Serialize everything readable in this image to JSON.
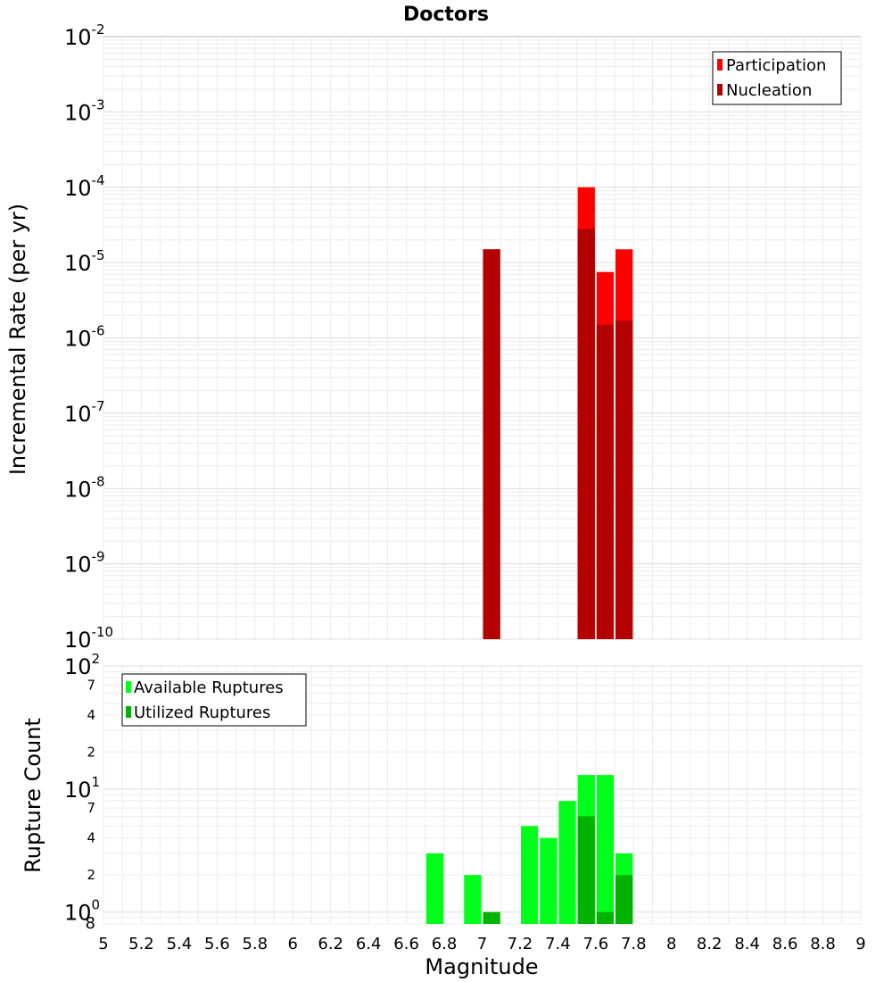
{
  "chart_data": [
    {
      "type": "bar",
      "title": "Doctors",
      "ylabel": "Incremental Rate (per yr)",
      "xlim": [
        5,
        9
      ],
      "ylim": [
        1e-10,
        0.01
      ],
      "yscale": "log",
      "bin_width": 0.1,
      "y_ticks": [
        {
          "base": "10",
          "exp": "-2"
        },
        {
          "base": "10",
          "exp": "-3"
        },
        {
          "base": "10",
          "exp": "-4"
        },
        {
          "base": "10",
          "exp": "-5"
        },
        {
          "base": "10",
          "exp": "-6"
        },
        {
          "base": "10",
          "exp": "-7"
        },
        {
          "base": "10",
          "exp": "-8"
        },
        {
          "base": "10",
          "exp": "-9"
        },
        {
          "base": "10",
          "exp": "-10"
        }
      ],
      "legend_position": "top-right",
      "series": [
        {
          "name": "Participation",
          "color": "#ff0000",
          "x": [
            7.05,
            7.55,
            7.65,
            7.75
          ],
          "values": [
            1.5e-05,
            0.0001,
            7.5e-06,
            1.5e-05
          ]
        },
        {
          "name": "Nucleation",
          "color": "#b30000",
          "x": [
            7.05,
            7.55,
            7.65,
            7.75
          ],
          "values": [
            1.5e-05,
            2.8e-05,
            1.5e-06,
            1.7e-06
          ]
        }
      ],
      "grid": true
    },
    {
      "type": "bar",
      "xlabel": "Magnitude",
      "ylabel": "Rupture Count",
      "xlim": [
        5,
        9
      ],
      "ylim": [
        0.8,
        100
      ],
      "yscale": "log",
      "bin_width": 0.1,
      "x_ticks": [
        "5",
        "5.2",
        "5.4",
        "5.6",
        "5.8",
        "6",
        "6.2",
        "6.4",
        "6.6",
        "6.8",
        "7",
        "7.2",
        "7.4",
        "7.6",
        "7.8",
        "8",
        "8.2",
        "8.4",
        "8.6",
        "8.8",
        "9"
      ],
      "y_major_ticks": [
        {
          "base": "10",
          "exp": "2"
        },
        {
          "base": "10",
          "exp": "1"
        },
        {
          "base": "10",
          "exp": "0"
        }
      ],
      "y_minor_ticks": [
        "7",
        "4",
        "2",
        "7",
        "4",
        "2",
        "8"
      ],
      "legend_position": "top-left",
      "series": [
        {
          "name": "Available Ruptures",
          "color": "#00ff1a",
          "x": [
            6.75,
            6.95,
            7.05,
            7.25,
            7.35,
            7.45,
            7.55,
            7.65,
            7.75
          ],
          "values": [
            3,
            2,
            1,
            5,
            4,
            8,
            13,
            13,
            3
          ]
        },
        {
          "name": "Utilized Ruptures",
          "color": "#00b300",
          "x": [
            7.05,
            7.55,
            7.65,
            7.75
          ],
          "values": [
            1,
            6,
            1,
            2
          ]
        }
      ],
      "grid": true
    }
  ]
}
